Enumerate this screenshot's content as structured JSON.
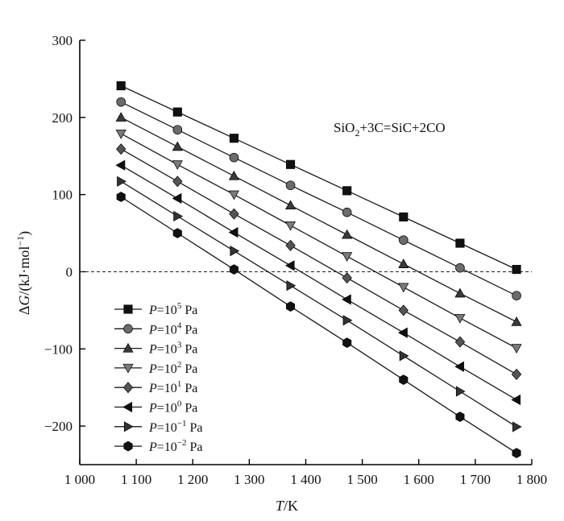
{
  "chart_data": {
    "type": "line",
    "xlabel": {
      "symbol": "T",
      "unit": "/K"
    },
    "ylabel": {
      "prefix": "Δ",
      "symbol": "G",
      "unit_open": "/(kJ·mol",
      "unit_exp": "−1",
      "unit_close": ")"
    },
    "xlim": [
      1000,
      1800
    ],
    "ylim": [
      -250,
      300
    ],
    "x_ticks": [
      1000,
      1100,
      1200,
      1300,
      1400,
      1500,
      1600,
      1700,
      1800
    ],
    "x_tick_labels": [
      "1 000",
      "1 100",
      "1 200",
      "1 300",
      "1 400",
      "1 500",
      "1 600",
      "1 700",
      "1 800"
    ],
    "y_ticks": [
      -200,
      -100,
      0,
      100,
      200,
      300
    ],
    "y_tick_labels": [
      "−200",
      "−100",
      "0",
      "100",
      "200",
      "300"
    ],
    "reference_line": {
      "y": 0,
      "style": "dashed"
    },
    "annotation": {
      "parts": [
        "SiO",
        "2",
        "+3C=SiC+2CO"
      ]
    },
    "legend": {
      "placement": "lower-left"
    },
    "grid": false,
    "x": [
      1073,
      1173,
      1273,
      1373,
      1473,
      1573,
      1673,
      1773
    ],
    "series": [
      {
        "name": "P=10^5 Pa",
        "label_base": "=10",
        "label_exp": "5",
        "label_unit": " Pa",
        "marker": "square",
        "values": [
          241,
          207,
          173,
          139,
          105,
          71,
          37,
          3
        ]
      },
      {
        "name": "P=10^4 Pa",
        "label_base": "=10",
        "label_exp": "4",
        "label_unit": " Pa",
        "marker": "circle",
        "values": [
          220,
          184,
          148,
          112,
          77,
          41,
          5,
          -31
        ]
      },
      {
        "name": "P=10^3 Pa",
        "label_base": "=10",
        "label_exp": "3",
        "label_unit": " Pa",
        "marker": "triangle-up",
        "values": [
          200,
          162,
          124,
          86,
          48,
          10,
          -28,
          -65
        ]
      },
      {
        "name": "P=10^2 Pa",
        "label_base": "=10",
        "label_exp": "2",
        "label_unit": " Pa",
        "marker": "triangle-down",
        "values": [
          179,
          139,
          100,
          60,
          20,
          -20,
          -60,
          -99
        ]
      },
      {
        "name": "P=10^1 Pa",
        "label_base": "=10",
        "label_exp": "1",
        "label_unit": " Pa",
        "marker": "diamond",
        "values": [
          159,
          117,
          75,
          34,
          -8,
          -50,
          -91,
          -133
        ]
      },
      {
        "name": "P=10^0 Pa",
        "label_base": "=10",
        "label_exp": "0",
        "label_unit": " Pa",
        "marker": "triangle-left",
        "values": [
          138,
          95,
          51,
          8,
          -36,
          -79,
          -123,
          -166
        ]
      },
      {
        "name": "P=10^-1 Pa",
        "label_base": "=10",
        "label_exp": "−1",
        "label_unit": " Pa",
        "marker": "triangle-right",
        "values": [
          117,
          72,
          27,
          -18,
          -63,
          -109,
          -155,
          -201
        ]
      },
      {
        "name": "P=10^-2 Pa",
        "label_base": "=10",
        "label_exp": "−2",
        "label_unit": " Pa",
        "marker": "hexagon",
        "values": [
          97,
          50,
          3,
          -45,
          -92,
          -140,
          -188,
          -235
        ]
      }
    ],
    "colors": {
      "line": "#1a1a1a",
      "marker_fills": [
        "#111111",
        "#6b6b6b",
        "#3a3a3a",
        "#7a7a7a",
        "#555555",
        "#111111",
        "#333333",
        "#111111"
      ]
    }
  }
}
